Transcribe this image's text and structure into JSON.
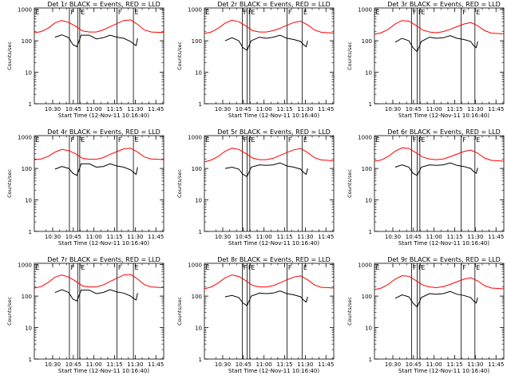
{
  "figure": {
    "y_axis_label": "Counts/sec",
    "x_axis_label": "Start Time (12-Nov-11 10:16:40)",
    "x_tick_labels": [
      "10:30",
      "10:45",
      "11:00",
      "11:15",
      "11:30",
      "11:45"
    ],
    "y_tick_labels": [
      "1",
      "10",
      "100",
      "1000"
    ],
    "series_colors": {
      "events": "#000000",
      "lld": "#ff0000"
    }
  },
  "chart_data": [
    {
      "type": "line",
      "title": "Det 1r BLACK = Events, RED = LLD",
      "xlabel": "Start Time (12-Nov-11 10:16:40)",
      "ylabel": "Counts/sec",
      "x_unit": "minutes after 10:16:40",
      "xlim": [
        0,
        94
      ],
      "ylim": [
        1,
        1100
      ],
      "y_scale": "log",
      "markers": [
        {
          "label": "F",
          "x": 25.5
        },
        {
          "label": "F",
          "x": 31.5
        },
        {
          "label": "E",
          "x": 33
        },
        {
          "label": "F",
          "x": 60
        },
        {
          "label": "E",
          "x": 72
        }
      ],
      "series": [
        {
          "name": "BLACK = Events",
          "color": "#000000",
          "x": [
            15,
            20,
            25,
            28,
            31,
            34,
            40,
            45,
            50,
            55,
            60,
            65,
            70,
            72,
            74,
            75
          ],
          "y": [
            130,
            155,
            125,
            75,
            65,
            150,
            150,
            115,
            125,
            150,
            130,
            120,
            95,
            80,
            70,
            120
          ]
        },
        {
          "name": "RED = LLD",
          "color": "#ff0000",
          "x": [
            0,
            5,
            10,
            15,
            20,
            25,
            30,
            35,
            40,
            45,
            50,
            55,
            60,
            65,
            70,
            75,
            80,
            85,
            90,
            94
          ],
          "y": [
            180,
            195,
            250,
            370,
            440,
            380,
            290,
            205,
            190,
            190,
            220,
            280,
            350,
            440,
            460,
            330,
            220,
            190,
            185,
            185
          ]
        }
      ]
    },
    {
      "type": "line",
      "title": "Det 2r BLACK = Events, RED = LLD",
      "xlabel": "Start Time (12-Nov-11 10:16:40)",
      "ylabel": "Counts/sec",
      "x_unit": "minutes after 10:16:40",
      "xlim": [
        0,
        94
      ],
      "ylim": [
        1,
        1100
      ],
      "y_scale": "log",
      "markers": [
        {
          "label": "F",
          "x": 27.5
        },
        {
          "label": "F",
          "x": 31
        },
        {
          "label": "E",
          "x": 33
        },
        {
          "label": "F",
          "x": 60
        },
        {
          "label": "E",
          "x": 71
        }
      ],
      "series": [
        {
          "name": "BLACK = Events",
          "color": "#000000",
          "x": [
            15,
            20,
            25,
            28,
            31,
            34,
            40,
            45,
            50,
            55,
            60,
            65,
            70,
            72,
            74,
            75
          ],
          "y": [
            100,
            125,
            100,
            60,
            50,
            100,
            130,
            120,
            130,
            150,
            120,
            110,
            95,
            75,
            65,
            100
          ]
        },
        {
          "name": "RED = LLD",
          "color": "#ff0000",
          "x": [
            0,
            5,
            10,
            15,
            20,
            25,
            30,
            35,
            40,
            45,
            50,
            55,
            60,
            65,
            70,
            75,
            80,
            85,
            90,
            94
          ],
          "y": [
            170,
            190,
            250,
            360,
            450,
            400,
            300,
            210,
            190,
            190,
            210,
            250,
            310,
            380,
            420,
            320,
            220,
            185,
            180,
            175
          ]
        }
      ]
    },
    {
      "type": "line",
      "title": "Det 3r BLACK = Events, RED = LLD",
      "xlabel": "Start Time (12-Nov-11 10:16:40)",
      "ylabel": "Counts/sec",
      "x_unit": "minutes after 10:16:40",
      "xlim": [
        0,
        94
      ],
      "ylim": [
        1,
        1100
      ],
      "y_scale": "log",
      "markers": [
        {
          "label": "F",
          "x": 27
        },
        {
          "label": "F",
          "x": 31
        },
        {
          "label": "E",
          "x": 33
        },
        {
          "label": "F",
          "x": 63
        },
        {
          "label": "E",
          "x": 73
        }
      ],
      "series": [
        {
          "name": "BLACK = Events",
          "color": "#000000",
          "x": [
            15,
            20,
            25,
            28,
            31,
            34,
            40,
            45,
            50,
            55,
            60,
            65,
            70,
            72,
            74,
            75
          ],
          "y": [
            90,
            120,
            100,
            60,
            45,
            95,
            130,
            120,
            125,
            145,
            120,
            110,
            95,
            70,
            60,
            95
          ]
        },
        {
          "name": "RED = LLD",
          "color": "#ff0000",
          "x": [
            0,
            5,
            10,
            15,
            20,
            25,
            30,
            35,
            40,
            45,
            50,
            55,
            60,
            65,
            70,
            75,
            80,
            85,
            90,
            94
          ],
          "y": [
            160,
            180,
            230,
            340,
            440,
            420,
            310,
            220,
            190,
            180,
            195,
            230,
            280,
            340,
            380,
            300,
            210,
            175,
            170,
            165
          ]
        }
      ]
    },
    {
      "type": "line",
      "title": "Det 4r BLACK = Events, RED = LLD",
      "xlabel": "Start Time (12-Nov-11 10:16:40)",
      "ylabel": "Counts/sec",
      "x_unit": "minutes after 10:16:40",
      "xlim": [
        0,
        94
      ],
      "ylim": [
        1,
        1100
      ],
      "y_scale": "log",
      "markers": [
        {
          "label": "F",
          "x": 25.5
        },
        {
          "label": "F",
          "x": 31.5
        },
        {
          "label": "E",
          "x": 33
        },
        {
          "label": "F",
          "x": 60
        },
        {
          "label": "E",
          "x": 72
        }
      ],
      "series": [
        {
          "name": "BLACK = Events",
          "color": "#000000",
          "x": [
            15,
            20,
            25,
            28,
            31,
            34,
            40,
            45,
            50,
            55,
            60,
            65,
            70,
            72,
            74,
            75
          ],
          "y": [
            95,
            115,
            100,
            70,
            60,
            140,
            140,
            110,
            115,
            140,
            120,
            110,
            90,
            75,
            65,
            110
          ]
        },
        {
          "name": "RED = LLD",
          "color": "#ff0000",
          "x": [
            0,
            5,
            10,
            15,
            20,
            25,
            30,
            35,
            40,
            45,
            50,
            55,
            60,
            65,
            70,
            75,
            80,
            85,
            90,
            94
          ],
          "y": [
            190,
            200,
            240,
            330,
            400,
            370,
            290,
            210,
            195,
            195,
            220,
            280,
            340,
            420,
            440,
            330,
            230,
            200,
            195,
            190
          ]
        }
      ]
    },
    {
      "type": "line",
      "title": "Det 5r BLACK = Events, RED = LLD",
      "xlabel": "Start Time (12-Nov-11 10:16:40)",
      "ylabel": "Counts/sec",
      "x_unit": "minutes after 10:16:40",
      "xlim": [
        0,
        94
      ],
      "ylim": [
        1,
        1100
      ],
      "y_scale": "log",
      "markers": [
        {
          "label": "F",
          "x": 27.5
        },
        {
          "label": "F",
          "x": 31
        },
        {
          "label": "E",
          "x": 33
        },
        {
          "label": "F",
          "x": 60
        },
        {
          "label": "E",
          "x": 71
        }
      ],
      "series": [
        {
          "name": "BLACK = Events",
          "color": "#000000",
          "x": [
            15,
            20,
            25,
            28,
            31,
            34,
            40,
            45,
            50,
            55,
            60,
            65,
            70,
            72,
            74,
            75
          ],
          "y": [
            100,
            110,
            95,
            65,
            55,
            110,
            130,
            125,
            130,
            150,
            120,
            110,
            95,
            75,
            65,
            100
          ]
        },
        {
          "name": "RED = LLD",
          "color": "#ff0000",
          "x": [
            0,
            5,
            10,
            15,
            20,
            25,
            30,
            35,
            40,
            45,
            50,
            55,
            60,
            65,
            70,
            75,
            80,
            85,
            90,
            94
          ],
          "y": [
            160,
            185,
            240,
            350,
            440,
            400,
            300,
            215,
            190,
            190,
            210,
            260,
            320,
            390,
            430,
            320,
            220,
            185,
            180,
            175
          ]
        }
      ]
    },
    {
      "type": "line",
      "title": "Det 6r BLACK = Events, RED = LLD",
      "xlabel": "Start Time (12-Nov-11 10:16:40)",
      "ylabel": "Counts/sec",
      "x_unit": "minutes after 10:16:40",
      "xlim": [
        0,
        94
      ],
      "ylim": [
        1,
        1100
      ],
      "y_scale": "log",
      "markers": [
        {
          "label": "F",
          "x": 27
        },
        {
          "label": "F",
          "x": 31
        },
        {
          "label": "E",
          "x": 33
        },
        {
          "label": "F",
          "x": 63
        },
        {
          "label": "E",
          "x": 73
        }
      ],
      "series": [
        {
          "name": "BLACK = Events",
          "color": "#000000",
          "x": [
            15,
            20,
            25,
            28,
            31,
            34,
            40,
            45,
            50,
            55,
            60,
            65,
            70,
            72,
            74,
            75
          ],
          "y": [
            110,
            130,
            110,
            70,
            60,
            110,
            130,
            125,
            130,
            150,
            125,
            115,
            100,
            80,
            70,
            105
          ]
        },
        {
          "name": "RED = LLD",
          "color": "#ff0000",
          "x": [
            0,
            5,
            10,
            15,
            20,
            25,
            30,
            35,
            40,
            45,
            50,
            55,
            60,
            65,
            70,
            75,
            80,
            85,
            90,
            94
          ],
          "y": [
            170,
            185,
            240,
            350,
            450,
            430,
            320,
            230,
            200,
            190,
            200,
            235,
            285,
            345,
            385,
            305,
            215,
            180,
            175,
            170
          ]
        }
      ]
    },
    {
      "type": "line",
      "title": "Det 7r BLACK = Events, RED = LLD",
      "xlabel": "Start Time (12-Nov-11 10:16:40)",
      "ylabel": "Counts/sec",
      "x_unit": "minutes after 10:16:40",
      "xlim": [
        0,
        94
      ],
      "ylim": [
        1,
        1100
      ],
      "y_scale": "log",
      "markers": [
        {
          "label": "F",
          "x": 25.5
        },
        {
          "label": "F",
          "x": 31.5
        },
        {
          "label": "E",
          "x": 33
        },
        {
          "label": "F",
          "x": 60
        },
        {
          "label": "E",
          "x": 72
        }
      ],
      "series": [
        {
          "name": "BLACK = Events",
          "color": "#000000",
          "x": [
            15,
            20,
            25,
            28,
            31,
            34,
            40,
            45,
            50,
            55,
            60,
            65,
            70,
            72,
            74,
            75
          ],
          "y": [
            130,
            160,
            130,
            80,
            70,
            155,
            155,
            120,
            130,
            160,
            135,
            125,
            100,
            85,
            75,
            125
          ]
        },
        {
          "name": "RED = LLD",
          "color": "#ff0000",
          "x": [
            0,
            5,
            10,
            15,
            20,
            25,
            30,
            35,
            40,
            45,
            50,
            55,
            60,
            65,
            70,
            75,
            80,
            85,
            90,
            94
          ],
          "y": [
            180,
            200,
            270,
            400,
            470,
            400,
            300,
            210,
            195,
            195,
            225,
            290,
            370,
            470,
            490,
            350,
            230,
            195,
            190,
            185
          ]
        }
      ]
    },
    {
      "type": "line",
      "title": "Det 8r BLACK = Events, RED = LLD",
      "xlabel": "Start Time (12-Nov-11 10:16:40)",
      "ylabel": "Counts/sec",
      "x_unit": "minutes after 10:16:40",
      "xlim": [
        0,
        94
      ],
      "ylim": [
        1,
        1100
      ],
      "y_scale": "log",
      "markers": [
        {
          "label": "F",
          "x": 27.5
        },
        {
          "label": "F",
          "x": 31
        },
        {
          "label": "E",
          "x": 33
        },
        {
          "label": "F",
          "x": 60
        },
        {
          "label": "E",
          "x": 71
        }
      ],
      "series": [
        {
          "name": "BLACK = Events",
          "color": "#000000",
          "x": [
            15,
            20,
            25,
            28,
            31,
            34,
            40,
            45,
            50,
            55,
            60,
            65,
            70,
            72,
            74,
            75
          ],
          "y": [
            95,
            105,
            90,
            60,
            50,
            100,
            125,
            120,
            125,
            145,
            120,
            110,
            95,
            75,
            65,
            95
          ]
        },
        {
          "name": "RED = LLD",
          "color": "#ff0000",
          "x": [
            0,
            5,
            10,
            15,
            20,
            25,
            30,
            35,
            40,
            45,
            50,
            55,
            60,
            65,
            70,
            75,
            80,
            85,
            90,
            94
          ],
          "y": [
            170,
            195,
            260,
            380,
            470,
            420,
            310,
            220,
            195,
            195,
            215,
            265,
            330,
            400,
            440,
            330,
            225,
            190,
            185,
            180
          ]
        }
      ]
    },
    {
      "type": "line",
      "title": "Det 9r BLACK = Events, RED = LLD",
      "xlabel": "Start Time (12-Nov-11 10:16:40)",
      "ylabel": "Counts/sec",
      "x_unit": "minutes after 10:16:40",
      "xlim": [
        0,
        94
      ],
      "ylim": [
        1,
        1100
      ],
      "y_scale": "log",
      "markers": [
        {
          "label": "F",
          "x": 27
        },
        {
          "label": "F",
          "x": 31
        },
        {
          "label": "E",
          "x": 33
        },
        {
          "label": "F",
          "x": 63
        },
        {
          "label": "E",
          "x": 73
        }
      ],
      "series": [
        {
          "name": "BLACK = Events",
          "color": "#000000",
          "x": [
            15,
            20,
            25,
            28,
            31,
            34,
            40,
            45,
            50,
            55,
            60,
            65,
            70,
            72,
            74,
            75
          ],
          "y": [
            85,
            110,
            95,
            60,
            45,
            90,
            120,
            115,
            120,
            140,
            115,
            105,
            90,
            70,
            60,
            90
          ]
        },
        {
          "name": "RED = LLD",
          "color": "#ff0000",
          "x": [
            0,
            5,
            10,
            15,
            20,
            25,
            30,
            35,
            40,
            45,
            50,
            55,
            60,
            65,
            70,
            75,
            80,
            85,
            90,
            94
          ],
          "y": [
            160,
            180,
            235,
            345,
            445,
            425,
            315,
            225,
            195,
            185,
            200,
            235,
            285,
            345,
            385,
            305,
            215,
            180,
            175,
            170
          ]
        }
      ]
    }
  ]
}
